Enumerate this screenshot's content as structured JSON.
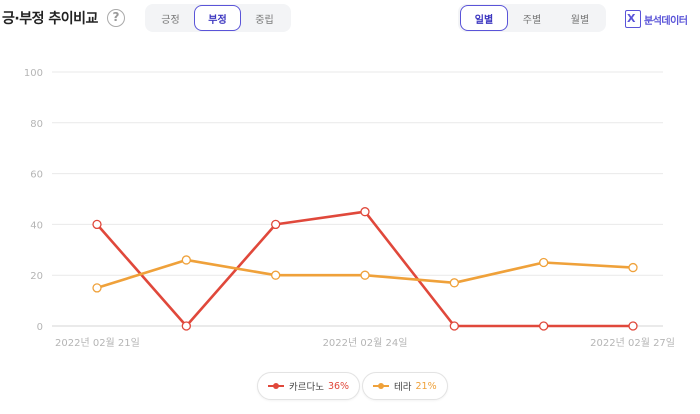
{
  "header": {
    "title": "긍·부정 추이비교",
    "help_label": "?",
    "sentiment_tabs": [
      {
        "label": "긍정",
        "active": false
      },
      {
        "label": "부정",
        "active": true
      },
      {
        "label": "중립",
        "active": false
      }
    ],
    "period_tabs": [
      {
        "label": "일별",
        "active": true
      },
      {
        "label": "주별",
        "active": false
      },
      {
        "label": "월별",
        "active": false
      }
    ],
    "analysis_button": {
      "label": "분석데이터",
      "icon": "excel-icon"
    }
  },
  "colors": {
    "accent": "#5a54d8",
    "series1": "#e0483b",
    "series2": "#efa13a",
    "grid": "#e9e9e9"
  },
  "chart_data": {
    "type": "line",
    "title": "",
    "xlabel": "",
    "ylabel": "",
    "ylim": [
      0,
      100
    ],
    "yticks": [
      0,
      20,
      40,
      60,
      80,
      100
    ],
    "grid": true,
    "x": [
      "2022년 02월 21일",
      "2022년 02월 22일",
      "2022년 02월 23일",
      "2022년 02월 24일",
      "2022년 02월 25일",
      "2022년 02월 26일",
      "2022년 02월 27일"
    ],
    "x_tick_labels": [
      "2022년 02월 21일",
      "2022년 02월 24일",
      "2022년 02월 27일"
    ],
    "series": [
      {
        "name": "카르다노",
        "values": [
          40,
          0,
          40,
          45,
          0,
          0,
          0
        ],
        "color": "#e0483b"
      },
      {
        "name": "테라",
        "values": [
          15,
          26,
          20,
          20,
          17,
          25,
          23
        ],
        "color": "#efa13a"
      }
    ],
    "legend_placement": "bottom-center"
  },
  "legend": [
    {
      "name": "카르다노",
      "percent": "36%",
      "color": "#e0483b"
    },
    {
      "name": "테라",
      "percent": "21%",
      "color": "#efa13a"
    }
  ]
}
